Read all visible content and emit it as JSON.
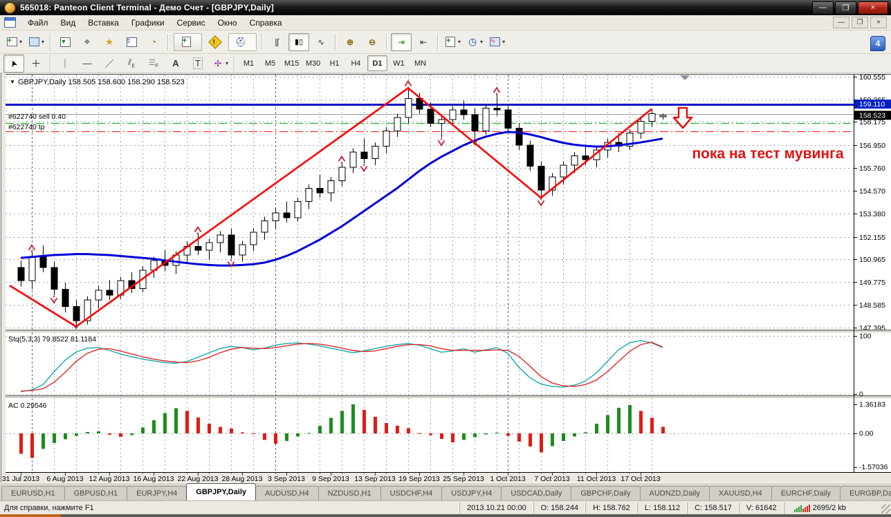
{
  "window": {
    "title": "565018: Panteon Client Terminal - Демо Счет - [GBPJPY,Daily]",
    "controls": {
      "minimize": "—",
      "maximize": "❐",
      "close": "×"
    }
  },
  "menu": {
    "items": [
      "Файл",
      "Вид",
      "Вставка",
      "Графики",
      "Сервис",
      "Окно",
      "Справка"
    ]
  },
  "toolbar": {
    "new_order_label": "Новый Ордер",
    "experts_label": "Советники",
    "timeframes": [
      "M1",
      "M5",
      "M15",
      "M30",
      "H1",
      "H4",
      "D1",
      "W1",
      "MN"
    ],
    "active_timeframe": "D1",
    "badge_count": "4"
  },
  "chart": {
    "header": "GBPJPY,Daily  158.505 158.600 158.290 158.523",
    "annotation": "пока на тест мувинга",
    "annotation_color": "#e01212",
    "order_line_sell_label": "#622740 sell 0.40",
    "order_line_tp_label": "#622740 tp",
    "price_marker_blue": "159.110",
    "price_marker_black": "158.523",
    "stoch_label": "Stq(5,3,3) 79.8522 81.1184",
    "stoch_ticks": [
      "100",
      "0"
    ],
    "ac_label": "AC 0.29546",
    "ac_ticks": [
      "1.36183",
      "0.00",
      "-1.57036"
    ],
    "colors": {
      "ma": "#0000d8",
      "zigzag": "#ff0000",
      "hline_blue": "#0018c8",
      "sell_line": "#00b400",
      "tp_line": "#ff1414",
      "gray_line": "#999990",
      "stoch_main": "#14aaaa",
      "stoch_signal": "#e02828",
      "ac_up": "#1e8c1e",
      "ac_down": "#e01c14",
      "fractal": "#c02030"
    }
  },
  "chart_data": {
    "type": "candlestick",
    "title": "GBPJPY,Daily",
    "ylabel": "price",
    "y_ticks": [
      160.555,
      159.365,
      158.175,
      156.95,
      155.76,
      154.57,
      153.38,
      152.155,
      150.965,
      149.775,
      148.585,
      147.395
    ],
    "ylim": [
      147.0,
      160.75
    ],
    "x_labels": [
      [
        0,
        "31 Jul 2013"
      ],
      [
        4,
        "6 Aug 2013"
      ],
      [
        8,
        "12 Aug 2013"
      ],
      [
        12,
        "16 Aug 2013"
      ],
      [
        16,
        "22 Aug 2013"
      ],
      [
        20,
        "28 Aug 2013"
      ],
      [
        24,
        "3 Sep 2013"
      ],
      [
        28,
        "9 Sep 2013"
      ],
      [
        32,
        "13 Sep 2013"
      ],
      [
        36,
        "19 Sep 2013"
      ],
      [
        40,
        "25 Sep 2013"
      ],
      [
        44,
        "1 Oct 2013"
      ],
      [
        48,
        "7 Oct 2013"
      ],
      [
        52,
        "11 Oct 2013"
      ],
      [
        56,
        "17 Oct 2013"
      ]
    ],
    "month_separators": [
      1,
      23,
      44
    ],
    "hlines": {
      "blue": 159.11,
      "gray": 158.59,
      "sell": 158.12,
      "tp": 157.67
    },
    "candles": [
      [
        150.55,
        150.9,
        149.55,
        149.85
      ],
      [
        149.85,
        151.35,
        149.4,
        151.1
      ],
      [
        151.1,
        151.7,
        150.3,
        150.55
      ],
      [
        150.55,
        150.85,
        149.1,
        149.4
      ],
      [
        149.4,
        149.75,
        148.2,
        148.5
      ],
      [
        148.5,
        148.85,
        147.45,
        147.75
      ],
      [
        147.75,
        149.05,
        147.55,
        148.85
      ],
      [
        148.85,
        149.6,
        148.4,
        149.35
      ],
      [
        149.35,
        149.9,
        148.85,
        149.1
      ],
      [
        149.1,
        150.05,
        148.9,
        149.85
      ],
      [
        149.85,
        150.3,
        149.2,
        149.45
      ],
      [
        149.45,
        150.6,
        149.25,
        150.4
      ],
      [
        150.4,
        151.1,
        150.0,
        150.9
      ],
      [
        150.9,
        151.45,
        150.35,
        150.65
      ],
      [
        150.65,
        151.4,
        150.2,
        151.2
      ],
      [
        151.2,
        151.9,
        150.8,
        151.65
      ],
      [
        151.65,
        152.3,
        151.2,
        151.45
      ],
      [
        151.45,
        152.05,
        150.95,
        151.85
      ],
      [
        151.85,
        152.45,
        151.35,
        152.25
      ],
      [
        152.25,
        152.6,
        151.0,
        151.2
      ],
      [
        151.2,
        151.95,
        150.85,
        151.75
      ],
      [
        151.75,
        152.6,
        151.4,
        152.4
      ],
      [
        152.4,
        153.2,
        152.0,
        153.0
      ],
      [
        153.0,
        153.7,
        152.6,
        153.4
      ],
      [
        153.4,
        154.0,
        152.9,
        153.15
      ],
      [
        153.15,
        154.2,
        152.95,
        154.0
      ],
      [
        154.0,
        154.9,
        153.6,
        154.7
      ],
      [
        154.7,
        155.4,
        154.2,
        154.45
      ],
      [
        154.45,
        155.3,
        154.0,
        155.1
      ],
      [
        155.1,
        156.0,
        154.8,
        155.8
      ],
      [
        155.8,
        156.8,
        155.5,
        156.6
      ],
      [
        156.6,
        157.3,
        156.0,
        156.25
      ],
      [
        156.25,
        157.1,
        155.9,
        156.9
      ],
      [
        156.9,
        157.9,
        156.55,
        157.7
      ],
      [
        157.7,
        158.6,
        157.4,
        158.4
      ],
      [
        158.4,
        159.95,
        158.1,
        159.4
      ],
      [
        159.4,
        159.7,
        158.6,
        158.85
      ],
      [
        158.85,
        159.2,
        157.9,
        158.1
      ],
      [
        158.1,
        158.5,
        157.35,
        158.3
      ],
      [
        158.3,
        159.0,
        158.0,
        158.8
      ],
      [
        158.8,
        159.3,
        158.3,
        158.55
      ],
      [
        158.55,
        158.9,
        157.4,
        157.7
      ],
      [
        157.7,
        159.1,
        157.5,
        158.9
      ],
      [
        158.9,
        159.6,
        158.5,
        158.8
      ],
      [
        158.8,
        159.0,
        157.6,
        157.85
      ],
      [
        157.85,
        158.1,
        156.7,
        156.95
      ],
      [
        156.95,
        157.2,
        155.6,
        155.85
      ],
      [
        155.85,
        156.1,
        154.2,
        154.6
      ],
      [
        154.6,
        155.5,
        154.3,
        155.3
      ],
      [
        155.3,
        156.1,
        154.9,
        155.9
      ],
      [
        155.9,
        156.6,
        155.5,
        156.4
      ],
      [
        156.4,
        157.0,
        155.9,
        156.2
      ],
      [
        156.2,
        156.9,
        155.8,
        156.7
      ],
      [
        156.7,
        157.3,
        156.3,
        157.1
      ],
      [
        157.1,
        157.6,
        156.6,
        156.9
      ],
      [
        156.9,
        157.8,
        156.7,
        157.6
      ],
      [
        157.6,
        158.4,
        157.3,
        158.2
      ],
      [
        158.2,
        158.85,
        157.9,
        158.6
      ],
      [
        158.505,
        158.6,
        158.29,
        158.523
      ]
    ],
    "ma": [
      151.05,
      151.1,
      151.15,
      151.2,
      151.22,
      151.25,
      151.25,
      151.22,
      151.2,
      151.15,
      151.1,
      151.05,
      151.0,
      150.92,
      150.85,
      150.78,
      150.72,
      150.68,
      150.65,
      150.65,
      150.68,
      150.72,
      150.8,
      150.95,
      151.15,
      151.4,
      151.7,
      152.0,
      152.35,
      152.7,
      153.1,
      153.5,
      153.9,
      154.3,
      154.7,
      155.15,
      155.6,
      156.0,
      156.35,
      156.65,
      156.95,
      157.2,
      157.4,
      157.55,
      157.65,
      157.62,
      157.52,
      157.38,
      157.22,
      157.08,
      156.98,
      156.92,
      156.88,
      156.9,
      156.95,
      157.02,
      157.1,
      157.2,
      157.3
    ],
    "zigzag": [
      [
        -1.0,
        149.6
      ],
      [
        5,
        147.45
      ],
      [
        35,
        159.95
      ],
      [
        47,
        154.2
      ],
      [
        57,
        158.85
      ]
    ],
    "fractals_up": [
      1,
      16,
      29,
      35,
      43
    ],
    "fractals_down": [
      3,
      5,
      19,
      31,
      38,
      41,
      47
    ],
    "stoch": {
      "k": [
        4,
        7,
        16,
        38,
        58,
        72,
        79,
        80,
        75,
        69,
        64,
        60,
        57,
        54,
        53,
        56,
        63,
        71,
        78,
        82,
        80,
        76,
        79,
        84,
        87,
        88,
        86,
        83,
        79,
        75,
        71,
        74,
        78,
        82,
        85,
        87,
        84,
        78,
        72,
        74,
        78,
        72,
        76,
        80,
        70,
        46,
        28,
        17,
        13,
        12,
        15,
        22,
        36,
        56,
        76,
        88,
        92,
        88,
        80
      ],
      "d": [
        5,
        6,
        9,
        20,
        37,
        56,
        70,
        77,
        78,
        74,
        69,
        64,
        60,
        57,
        55,
        54,
        57,
        63,
        71,
        77,
        80,
        79,
        78,
        80,
        83,
        86,
        87,
        86,
        83,
        79,
        75,
        73,
        74,
        78,
        82,
        85,
        85,
        83,
        78,
        75,
        75,
        75,
        75,
        76,
        75,
        65,
        48,
        30,
        19,
        14,
        13,
        16,
        24,
        38,
        56,
        73,
        85,
        89,
        81
      ],
      "range": [
        0,
        100
      ]
    },
    "ac": [
      -0.95,
      -1.15,
      -0.72,
      -0.45,
      -0.28,
      -0.12,
      0.06,
      0.1,
      -0.06,
      -0.16,
      -0.08,
      0.28,
      0.62,
      0.95,
      1.18,
      1.05,
      0.75,
      0.45,
      0.3,
      0.22,
      0.05,
      -0.04,
      -0.3,
      -0.48,
      -0.35,
      -0.15,
      0.02,
      0.35,
      0.72,
      1.05,
      1.36,
      1.1,
      0.78,
      0.48,
      0.35,
      0.25,
      0.02,
      -0.08,
      -0.25,
      -0.42,
      -0.3,
      -0.18,
      -0.05,
      0.04,
      -0.12,
      -0.38,
      -0.62,
      -0.88,
      -0.6,
      -0.35,
      -0.15,
      0.05,
      0.45,
      0.85,
      1.2,
      1.32,
      1.05,
      0.72,
      0.3
    ],
    "ac_range": [
      -1.57036,
      1.36183
    ]
  },
  "tabs": {
    "items": [
      "EURUSD,H1",
      "GBPUSD,H1",
      "EURJPY,H4",
      "GBPJPY,Daily",
      "AUDUSD,H4",
      "NZDUSD,H1",
      "USDCHF,H4",
      "USDJPY,H4",
      "USDCAD,Daily",
      "GBPCHF,Daily",
      "AUDNZD,Daily",
      "XAUUSD,H4",
      "EURCHF,Daily",
      "EURGBP,Daily"
    ],
    "active": "GBPJPY,Daily"
  },
  "status": {
    "help": "Для справки, нажмите F1",
    "time": "2013.10.21 00:00",
    "open": "O: 158.244",
    "high": "H: 158.762",
    "low": "L: 158.112",
    "close": "C: 158.517",
    "volume": "V: 61642",
    "traffic": "2695/2 kb"
  }
}
